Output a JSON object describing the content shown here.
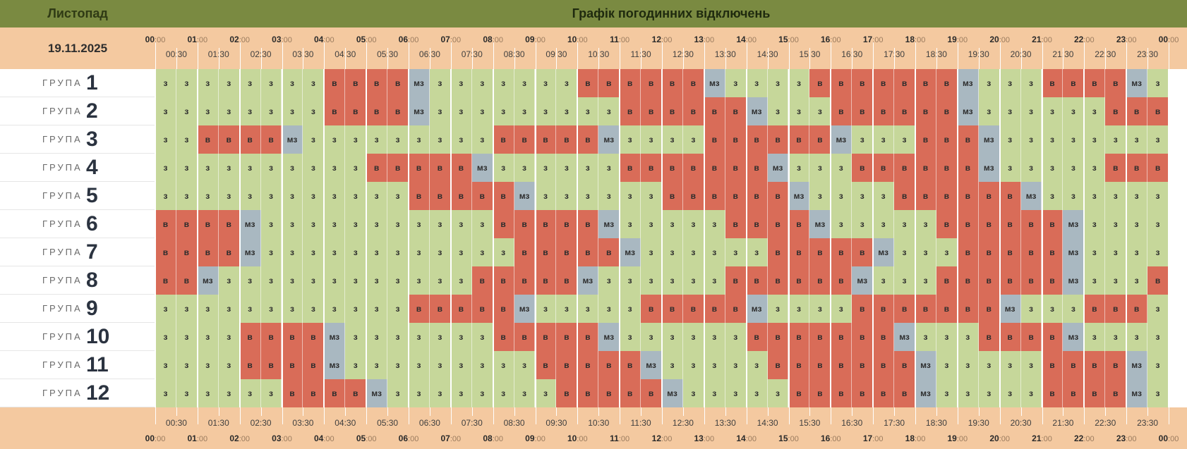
{
  "header": {
    "month": "Листопад",
    "title": "Графік погодинних відключень",
    "date": "19.11.2025"
  },
  "hours": [
    "00",
    "01",
    "02",
    "03",
    "04",
    "05",
    "06",
    "07",
    "08",
    "09",
    "10",
    "11",
    "12",
    "13",
    "14",
    "15",
    "16",
    "17",
    "18",
    "19",
    "20",
    "21",
    "22",
    "23",
    "00"
  ],
  "minutes_suffix": ":00",
  "half_hours": [
    "00:30",
    "01:30",
    "02:30",
    "03:30",
    "04:30",
    "05:30",
    "06:30",
    "07:30",
    "08:30",
    "09:30",
    "10:30",
    "11:30",
    "12:30",
    "13:30",
    "14:30",
    "15:30",
    "16:30",
    "17:30",
    "18:30",
    "19:30",
    "20:30",
    "21:30",
    "22:30",
    "23:30"
  ],
  "group_word": "ГРУПА",
  "status_labels": {
    "z": "з",
    "v": "в",
    "mz": "мз"
  },
  "status_colors": {
    "z": "#c6d79a",
    "v": "#d96c58",
    "mz": "#a9b8c1"
  },
  "groups": [
    {
      "num": "1",
      "slots": "zzzzzzzzvvvvmzzzzzzzzvvvvvvmzzzzzvvvvvvvmzzzzvvvvmzz"
    },
    {
      "num": "2",
      "slots": "zzzzzzzzvvvvmzzzzzzzzzzvvvvvvmzzzzvvvvvvmzzzzzzzvvv"
    },
    {
      "num": "3",
      "slots": "zzvvvvmzzzzzzzzzzvvvvvmzzzzzvvvvvvmzzzzvvvmzzzzz"
    },
    {
      "num": "4",
      "slots": "zzzzzzzzzzvvvvvmzzzzzzzvvvvvvvmzzzzvvvvvvmzzzzzzvvvv"
    },
    {
      "num": "5",
      "slots": "zzzzzzzzzzzzvvvvvmzzzzzzzvvvvvvmzzzzzvvvvvvmzzzzzzzz"
    },
    {
      "num": "6",
      "slots": "vvvvmzzzzzzzzzzzzvvvvvmzzzzzzvvvvmzzzzzzvvvvvvmzzzzzzzz"
    },
    {
      "num": "7",
      "slots": "vvvvmzzzzzzzzzzzzzvvvvvmzzzzzzzvvvvvmzzzzvvvvvmzzzzzz"
    },
    {
      "num": "8",
      "slots": "vvmzzzzzzzzzzzzzvvvvvmzzzzzzzvvvvvvmzzzzvvvvvvmzzzzvvv"
    },
    {
      "num": "9",
      "slots": "zzzzzzzzzzzzvvvvvmzzzzzzvvvvvmzzzzzvvvvvvvmzzzzvvv"
    },
    {
      "num": "10",
      "slots": "zzzzvvvvmzzzzzzzzvvvvvmzzzzzzzvvvvvvvmzzzzvvvvmzz"
    },
    {
      "num": "11",
      "slots": "zzzzvvvvmzzzzzzzzzzvvvvvmzzzzzzvvvvvvvmzzzzzzvvvvmzz"
    },
    {
      "num": "12",
      "slots": "zzzzzzvvvvmzzzzzzzzzvvvvvmzzzzzzvvvvvvmzzzzzzvvvvmzz"
    }
  ]
}
